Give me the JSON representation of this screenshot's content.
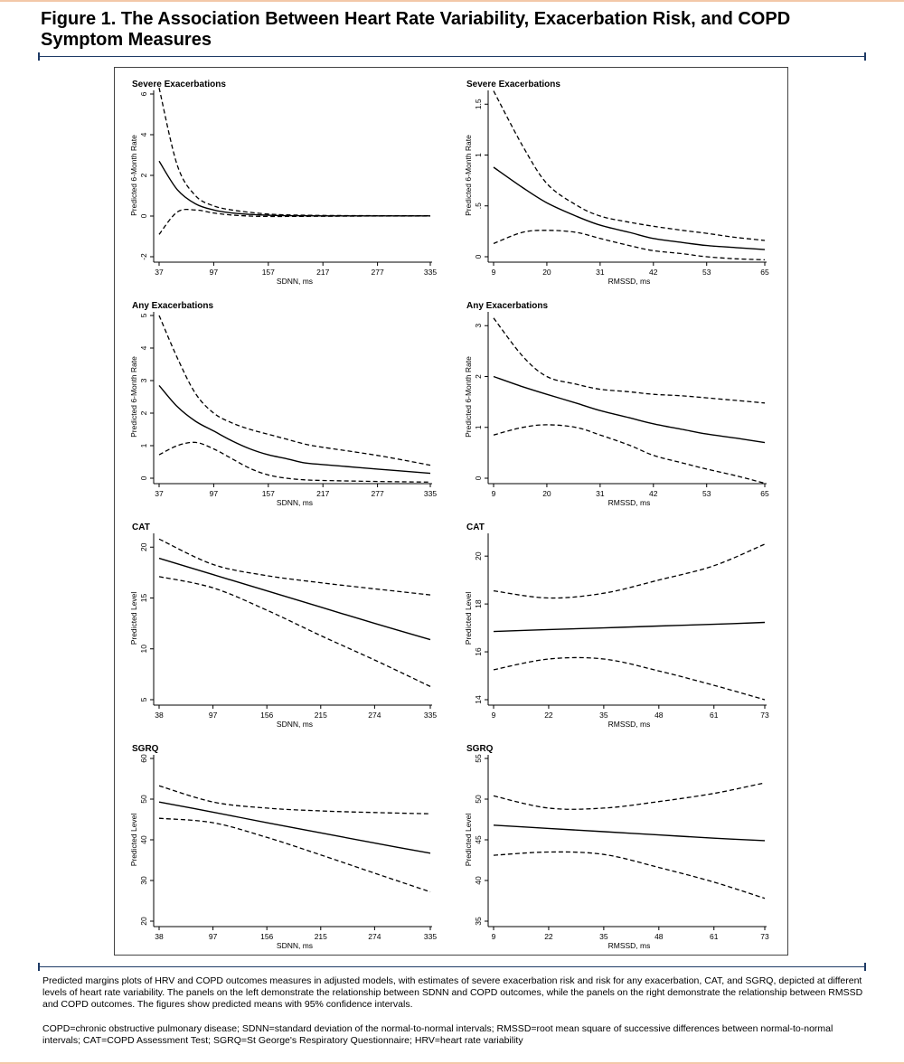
{
  "figure": {
    "title": "Figure 1. The Association Between Heart Rate Variability, Exacerbation Risk, and COPD Symptom Measures",
    "caption_1": "Predicted margins plots of HRV and COPD outcomes measures in adjusted models, with estimates of severe exacerbation risk and risk for any exacerbation, CAT, and SGRQ, depicted at different levels of heart rate variability. The panels on the left demonstrate the relationship between SDNN and COPD outcomes, while the panels on the right demonstrate the relationship between RMSSD and COPD outcomes. The figures show predicted means with 95% confidence intervals.",
    "caption_2": "COPD=chronic obstructive pulmonary disease; SDNN=standard deviation of the normal-to-normal intervals; RMSSD=root mean square of successive differences between normal-to-normal intervals; CAT=COPD Assessment Test; SGRQ=St George's Respiratory Questionnaire; HRV=heart rate variability"
  },
  "chart_data": [
    {
      "type": "line",
      "title": "Severe Exacerbations",
      "xlabel": "SDNN, ms",
      "ylabel": "Predicted 6-Month Rate",
      "xlim": [
        37,
        335
      ],
      "ylim": [
        -2,
        6
      ],
      "xticks": [
        37,
        97,
        157,
        217,
        277,
        335
      ],
      "yticks": [
        -2,
        0,
        2,
        4,
        6
      ],
      "x": [
        37,
        57,
        77,
        97,
        117,
        137,
        157,
        177,
        217,
        277,
        335
      ],
      "series": [
        {
          "role": "estimate",
          "values": [
            2.7,
            1.3,
            0.6,
            0.3,
            0.15,
            0.08,
            0.04,
            0.02,
            0.01,
            0.01,
            0.01
          ]
        },
        {
          "role": "upper",
          "values": [
            6.3,
            2.5,
            1.0,
            0.5,
            0.3,
            0.18,
            0.1,
            0.06,
            0.03,
            0.02,
            0.02
          ]
        },
        {
          "role": "lower",
          "values": [
            -0.9,
            0.2,
            0.3,
            0.15,
            0.05,
            0.0,
            -0.02,
            -0.02,
            -0.01,
            0.0,
            0.0
          ]
        }
      ]
    },
    {
      "type": "line",
      "title": "Severe Exacerbations",
      "xlabel": "RMSSD, ms",
      "ylabel": "Predicted 6-Month Rate",
      "xlim": [
        9,
        65
      ],
      "ylim": [
        0,
        1.6
      ],
      "xticks": [
        9,
        20,
        31,
        42,
        53,
        65
      ],
      "yticks": [
        0,
        0.5,
        1,
        1.5
      ],
      "ytick_labels": [
        "0",
        ".5",
        "1",
        "1.5"
      ],
      "x": [
        9,
        15,
        20,
        26,
        31,
        37,
        42,
        48,
        53,
        59,
        65
      ],
      "series": [
        {
          "role": "estimate",
          "values": [
            0.88,
            0.68,
            0.53,
            0.4,
            0.31,
            0.24,
            0.18,
            0.14,
            0.11,
            0.09,
            0.07
          ]
        },
        {
          "role": "upper",
          "values": [
            1.63,
            1.09,
            0.72,
            0.51,
            0.4,
            0.34,
            0.3,
            0.26,
            0.23,
            0.19,
            0.16
          ]
        },
        {
          "role": "lower",
          "values": [
            0.13,
            0.24,
            0.26,
            0.24,
            0.18,
            0.11,
            0.06,
            0.03,
            0.0,
            -0.02,
            -0.03
          ]
        }
      ]
    },
    {
      "type": "line",
      "title": "Any Exacerbations",
      "xlabel": "SDNN, ms",
      "ylabel": "Predicted 6-Month Rate",
      "xlim": [
        37,
        335
      ],
      "ylim": [
        0,
        5
      ],
      "xticks": [
        37,
        97,
        157,
        217,
        277,
        335
      ],
      "yticks": [
        0,
        1,
        2,
        3,
        4,
        5
      ],
      "x": [
        37,
        57,
        77,
        97,
        117,
        137,
        157,
        177,
        197,
        217,
        277,
        335
      ],
      "series": [
        {
          "role": "estimate",
          "values": [
            2.85,
            2.2,
            1.75,
            1.45,
            1.15,
            0.9,
            0.72,
            0.6,
            0.47,
            0.42,
            0.28,
            0.15
          ]
        },
        {
          "role": "upper",
          "values": [
            5.0,
            3.7,
            2.6,
            2.0,
            1.7,
            1.5,
            1.35,
            1.2,
            1.05,
            0.95,
            0.7,
            0.4
          ]
        },
        {
          "role": "lower",
          "values": [
            0.72,
            1.0,
            1.1,
            0.9,
            0.6,
            0.3,
            0.1,
            0.0,
            -0.05,
            -0.07,
            -0.1,
            -0.12
          ]
        }
      ]
    },
    {
      "type": "line",
      "title": "Any Exacerbations",
      "xlabel": "RMSSD, ms",
      "ylabel": "Predicted 6-Month Rate",
      "xlim": [
        9,
        65
      ],
      "ylim": [
        0,
        3.2
      ],
      "xticks": [
        9,
        20,
        31,
        42,
        53,
        65
      ],
      "yticks": [
        0,
        1,
        2,
        3
      ],
      "x": [
        9,
        15,
        20,
        26,
        31,
        37,
        42,
        48,
        53,
        59,
        65
      ],
      "series": [
        {
          "role": "estimate",
          "values": [
            2.0,
            1.8,
            1.65,
            1.48,
            1.33,
            1.19,
            1.07,
            0.96,
            0.87,
            0.79,
            0.7
          ]
        },
        {
          "role": "upper",
          "values": [
            3.15,
            2.4,
            2.0,
            1.85,
            1.75,
            1.7,
            1.65,
            1.62,
            1.58,
            1.53,
            1.48
          ]
        },
        {
          "role": "lower",
          "values": [
            0.85,
            1.0,
            1.05,
            1.0,
            0.85,
            0.65,
            0.45,
            0.3,
            0.18,
            0.05,
            -0.1
          ]
        }
      ]
    },
    {
      "type": "line",
      "title": "CAT",
      "xlabel": "SDNN, ms",
      "ylabel": "Predicted Level",
      "xlim": [
        38,
        335
      ],
      "ylim": [
        5,
        21
      ],
      "xticks": [
        38,
        97,
        156,
        215,
        274,
        335
      ],
      "yticks": [
        5,
        10,
        15,
        20
      ],
      "x": [
        38,
        97,
        156,
        215,
        274,
        335
      ],
      "series": [
        {
          "role": "estimate",
          "values": [
            18.9,
            17.3,
            15.7,
            14.1,
            12.5,
            10.9
          ]
        },
        {
          "role": "upper",
          "values": [
            20.8,
            18.3,
            17.2,
            16.5,
            15.9,
            15.3
          ]
        },
        {
          "role": "lower",
          "values": [
            17.1,
            16.0,
            13.8,
            11.3,
            8.9,
            6.3
          ]
        }
      ]
    },
    {
      "type": "line",
      "title": "CAT",
      "xlabel": "RMSSD, ms",
      "ylabel": "Predicted Level",
      "xlim": [
        9,
        73
      ],
      "ylim": [
        14,
        20.8
      ],
      "xticks": [
        9,
        22,
        35,
        48,
        61,
        73
      ],
      "yticks": [
        14,
        16,
        18,
        20
      ],
      "x": [
        9,
        22,
        35,
        48,
        61,
        73
      ],
      "series": [
        {
          "role": "estimate",
          "values": [
            16.85,
            16.93,
            17.0,
            17.08,
            17.15,
            17.23
          ]
        },
        {
          "role": "upper",
          "values": [
            18.55,
            18.25,
            18.45,
            19.0,
            19.6,
            20.5
          ]
        },
        {
          "role": "lower",
          "values": [
            15.25,
            15.7,
            15.7,
            15.2,
            14.6,
            14.0
          ]
        }
      ]
    },
    {
      "type": "line",
      "title": "SGRQ",
      "xlabel": "SDNN, ms",
      "ylabel": "Predicted Level",
      "xlim": [
        38,
        335
      ],
      "ylim": [
        20,
        60
      ],
      "xticks": [
        38,
        97,
        156,
        215,
        274,
        335
      ],
      "yticks": [
        20,
        30,
        40,
        50,
        60
      ],
      "x": [
        38,
        97,
        156,
        215,
        274,
        335
      ],
      "series": [
        {
          "role": "estimate",
          "values": [
            49.3,
            46.8,
            44.2,
            41.7,
            39.2,
            36.7
          ]
        },
        {
          "role": "upper",
          "values": [
            53.3,
            49.3,
            47.8,
            47.1,
            46.7,
            46.4
          ]
        },
        {
          "role": "lower",
          "values": [
            45.3,
            44.2,
            40.6,
            36.3,
            31.8,
            27.2
          ]
        }
      ]
    },
    {
      "type": "line",
      "title": "SGRQ",
      "xlabel": "RMSSD, ms",
      "ylabel": "Predicted Level",
      "xlim": [
        9,
        73
      ],
      "ylim": [
        35,
        55
      ],
      "xticks": [
        9,
        22,
        35,
        48,
        61,
        73
      ],
      "yticks": [
        35,
        40,
        45,
        50,
        55
      ],
      "x": [
        9,
        22,
        35,
        48,
        61,
        73
      ],
      "series": [
        {
          "role": "estimate",
          "values": [
            46.8,
            46.4,
            46.0,
            45.6,
            45.2,
            44.9
          ]
        },
        {
          "role": "upper",
          "values": [
            50.4,
            48.9,
            48.9,
            49.7,
            50.7,
            52.0
          ]
        },
        {
          "role": "lower",
          "values": [
            43.1,
            43.5,
            43.2,
            41.6,
            39.8,
            37.8
          ]
        }
      ]
    }
  ]
}
